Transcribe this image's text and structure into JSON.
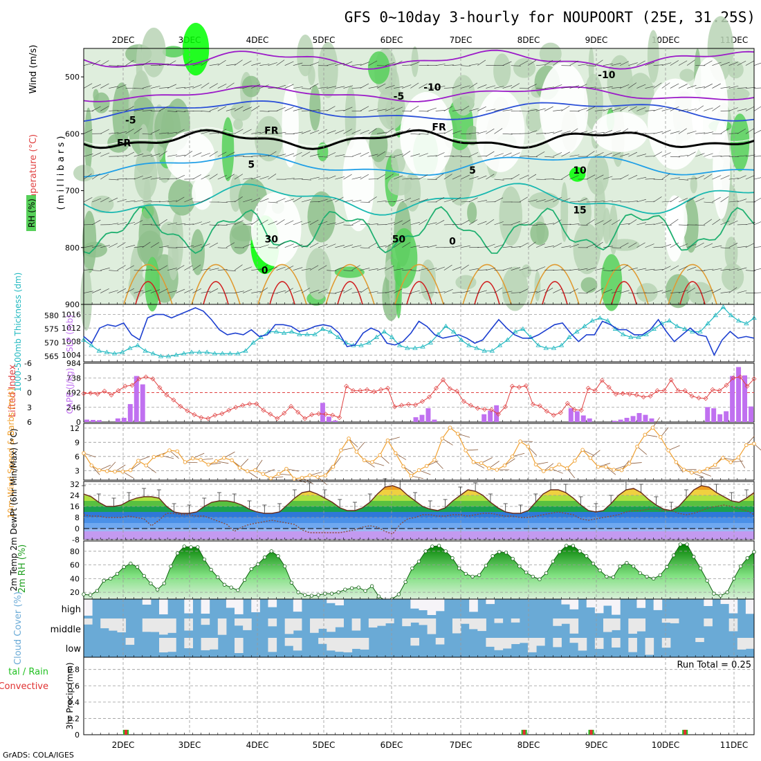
{
  "title": "GFS 0~10day 3-hourly for NOUPOORT (25E, 31.25S)",
  "credit": "GrADS: COLA/IGES",
  "dates": [
    "2DEC",
    "3DEC",
    "4DEC",
    "5DEC",
    "6DEC",
    "7DEC",
    "8DEC",
    "9DEC",
    "10DEC",
    "11DEC"
  ],
  "colors": {
    "rh_light": "#dfeedd",
    "rh_mid": "#b8d3b5",
    "rh_dark": "#8fbf8c",
    "rh_green": "#57d05a",
    "rh_bright": "#00ff00",
    "t_minus10": "#9b1ac8",
    "t_minus5": "#2a4fd8",
    "t_0": "#000000",
    "t_5": "#1f9fe6",
    "t_10": "#18b8b0",
    "t_15": "#20b070",
    "t_warm": "#e09a30",
    "t_hot": "#d02020",
    "slp": "#1c3fd0",
    "thickness": "#20b8c0",
    "lifted": "#e04040",
    "cape": "#c070f0",
    "wind": "#f0a030",
    "barb": "#8a5a3a",
    "dewpt": "#8a4a3a",
    "rh2m": "#20a020",
    "cloud": "#6aaad6",
    "cloud_gap": "#e8e8e8",
    "precip_total": "#20c020",
    "precip_conv": "#e03030"
  },
  "chart_data": [
    {
      "name": "upper_air",
      "type": "heatmap",
      "ylabels": [
        "Wind (m/s)",
        "Temperature (°C)",
        "RH (%)"
      ],
      "ylabel_right": "( m i l l i b a r s )",
      "yticks": [
        500,
        600,
        700,
        800,
        900
      ],
      "ylim": [
        450,
        900
      ],
      "contour_labels": [
        {
          "text": "-10",
          "t": 0.52,
          "p": 524
        },
        {
          "text": "-10",
          "t": 0.78,
          "p": 502
        },
        {
          "text": "-5",
          "t": 0.07,
          "p": 582
        },
        {
          "text": "-5",
          "t": 0.47,
          "p": 540
        },
        {
          "text": "FR",
          "t": 0.06,
          "p": 622
        },
        {
          "text": "FR",
          "t": 0.28,
          "p": 600
        },
        {
          "text": "FR",
          "t": 0.53,
          "p": 594
        },
        {
          "text": "5",
          "t": 0.25,
          "p": 660
        },
        {
          "text": "5",
          "t": 0.58,
          "p": 670
        },
        {
          "text": "10",
          "t": 0.74,
          "p": 670
        },
        {
          "text": "15",
          "t": 0.74,
          "p": 740
        },
        {
          "text": "30",
          "t": 0.28,
          "p": 791
        },
        {
          "text": "50",
          "t": 0.47,
          "p": 791
        },
        {
          "text": "0",
          "t": 0.55,
          "p": 795
        },
        {
          "text": "0",
          "t": 0.27,
          "p": 846
        }
      ]
    },
    {
      "name": "slp_thickness",
      "type": "line",
      "ylabel_left": "1000-500mb Thickness (dm)",
      "ylabel_right": "SLP (mb)",
      "left_ticks": [
        565,
        570,
        575,
        580
      ],
      "right_ticks": [
        1004,
        1008,
        1012,
        1016
      ],
      "series": [
        {
          "name": "SLP (mb)",
          "values": [
            1009.5,
            1007.5,
            1012,
            1013,
            1012.5,
            1013.5,
            1010,
            1008.5,
            1015,
            1016,
            1016,
            1015,
            1016,
            1017,
            1018,
            1017,
            1014.5,
            1011.5,
            1010,
            1010.5,
            1010,
            1011.5,
            1009.5,
            1010,
            1013,
            1013,
            1012.5,
            1011,
            1011.5,
            1012.5,
            1013,
            1012.5,
            1010.5,
            1006.5,
            1007,
            1010.5,
            1012,
            1011,
            1007.5,
            1007,
            1008,
            1010.5,
            1014,
            1012.5,
            1010,
            1009,
            1009.5,
            1010,
            1009,
            1007.5,
            1008.5,
            1011.5,
            1014.5,
            1012,
            1010,
            1009,
            1009,
            1010,
            1011.5,
            1013,
            1013.5,
            1010.5,
            1008,
            1010,
            1010,
            1014,
            1013,
            1011.5,
            1011.5,
            1010,
            1010,
            1011.5,
            1014.5,
            1011,
            1008,
            1010,
            1012,
            1010,
            1009.5,
            1004,
            1008.5,
            1011,
            1009,
            1009.5,
            1009
          ]
        },
        {
          "name": "1000-500mb Thickness (dm)",
          "values": [
            571,
            569,
            567,
            566.5,
            566,
            566.5,
            568,
            569,
            567,
            566,
            565,
            565,
            565.5,
            566,
            566.5,
            566.5,
            566.5,
            566,
            566,
            566,
            566,
            567,
            570,
            572,
            574,
            574,
            573.5,
            574,
            573,
            573,
            573,
            575,
            574,
            572,
            570,
            569,
            569,
            570,
            572,
            574,
            572,
            569,
            568,
            568,
            568.5,
            570,
            573,
            576,
            574,
            571,
            569,
            568,
            567,
            567,
            569,
            571,
            574,
            575,
            572,
            569,
            568,
            568,
            569,
            572,
            574,
            576,
            578,
            579,
            578,
            575,
            573,
            572,
            572,
            573,
            575,
            577,
            578,
            576,
            575,
            574,
            574,
            577,
            580,
            583,
            580,
            578,
            577,
            579
          ]
        }
      ]
    },
    {
      "name": "stability",
      "type": "bar",
      "ylabel_left": "Lifted Index",
      "ylabel_right": "CAPE (J/kg)",
      "left_ticks": [
        6,
        3,
        0,
        -3,
        -6
      ],
      "right_ticks": [
        0,
        246,
        492,
        738,
        984
      ],
      "series": [
        {
          "name": "Lifted Index",
          "values": [
            0.2,
            0.1,
            0.3,
            -0.3,
            0.5,
            -0.4,
            -1.3,
            -1.5,
            -2.8,
            -3.2,
            -2.8,
            -1,
            0.5,
            1.5,
            2.8,
            3.7,
            4.5,
            5.1,
            5.3,
            4.6,
            4.3,
            3.6,
            3,
            2.6,
            2.3,
            2.3,
            3.6,
            4.4,
            5.3,
            4.2,
            2.8,
            4,
            5.3,
            4.5,
            4.3,
            4.4,
            4.6,
            5.1,
            -1.3,
            -0.4,
            -0.4,
            -0.6,
            -0.2,
            -0.6,
            -0.9,
            2.9,
            2.6,
            2.4,
            2.5,
            1.8,
            0.9,
            -0.9,
            -2.6,
            -0.8,
            -0.3,
            1.8,
            2.6,
            3.2,
            3.4,
            3.5,
            4.4,
            2.9,
            -1.3,
            -1.1,
            -1.4,
            2.4,
            2.7,
            3.8,
            4.6,
            4.1,
            2.2,
            3.5,
            3.6,
            -0.9,
            -0.4,
            -2.5,
            -1.1,
            0.3,
            0.2,
            0.3,
            0.5,
            0.9,
            0.7,
            -0.4,
            -0.4,
            -2.6,
            -0.4,
            -0.4,
            0.7,
            1.1,
            1.2,
            -0.6,
            -0.4,
            -1.5,
            -3,
            -3.2,
            -1.3,
            -2.8
          ]
        },
        {
          "name": "CAPE (J/kg)",
          "values": [
            40,
            35,
            30,
            0,
            0,
            60,
            70,
            300,
            770,
            630,
            0,
            0,
            0,
            0,
            0,
            0,
            0,
            0,
            0,
            0,
            0,
            0,
            0,
            0,
            0,
            0,
            0,
            0,
            0,
            0,
            0,
            0,
            0,
            0,
            0,
            0,
            0,
            0,
            320,
            90,
            25,
            0,
            0,
            0,
            0,
            0,
            0,
            0,
            0,
            0,
            0,
            0,
            0,
            80,
            120,
            230,
            40,
            0,
            0,
            0,
            0,
            0,
            0,
            0,
            130,
            190,
            280,
            0,
            0,
            0,
            0,
            0,
            0,
            0,
            0,
            0,
            0,
            0,
            230,
            180,
            110,
            60,
            0,
            0,
            0,
            20,
            40,
            70,
            100,
            150,
            120,
            60,
            0,
            0,
            0,
            0,
            0,
            0,
            0,
            0,
            250,
            230,
            130,
            180,
            770,
            920,
            780,
            260
          ]
        }
      ]
    },
    {
      "name": "wind10m",
      "type": "line",
      "ylabel": "10m Wind Speed & Barbs (m/s)",
      "yticks": [
        3,
        6,
        9,
        12
      ],
      "ylim": [
        1,
        13
      ],
      "series": [
        {
          "name": "10m Wind Speed",
          "values": [
            6.7,
            4.1,
            3.1,
            2.9,
            2.8,
            2.8,
            3.1,
            5.1,
            4.1,
            5.9,
            6.2,
            7.3,
            7.1,
            4.8,
            5.6,
            5.3,
            4.3,
            5,
            5.7,
            5.2,
            3.6,
            2.9,
            3.1,
            2.3,
            1.4,
            2.3,
            3.4,
            1.3,
            1.5,
            2,
            1.7,
            2,
            3.8,
            7.3,
            9.8,
            7,
            5.2,
            4.8,
            6.3,
            9.4,
            6.7,
            3.9,
            1.9,
            3.1,
            4,
            5.3,
            9.8,
            12.1,
            10.8,
            7.3,
            4.8,
            4.6,
            3.5,
            3.2,
            4.1,
            6,
            9.2,
            8.1,
            4.3,
            2.9,
            3.4,
            4.3,
            3.5,
            5.1,
            7.4,
            5.7,
            3.8,
            3.8,
            3.2,
            3.1,
            4.5,
            8.1,
            10.6,
            12.1,
            10.1,
            7.3,
            4.8,
            3.2,
            2.6,
            2.8,
            3.4,
            4.2,
            5.7,
            4.8,
            5.8,
            8.4,
            8.7
          ]
        }
      ]
    },
    {
      "name": "temp2m",
      "type": "area",
      "ylabel": "2m Temp 2m DewPt (6hr Min/Max) (°C)",
      "yticks": [
        -8,
        0,
        8,
        16,
        24,
        32
      ],
      "ylim": [
        -8,
        34
      ],
      "series": [
        {
          "name": "2m Temp",
          "values": [
            25,
            23,
            19,
            16,
            16,
            17,
            20,
            22,
            23,
            23,
            22,
            16,
            12,
            11,
            11,
            12,
            16,
            19,
            20,
            20,
            19,
            17,
            14,
            12,
            11,
            11,
            12,
            17,
            22,
            26,
            27,
            25,
            22,
            19,
            15,
            13,
            13,
            15,
            19,
            25,
            30,
            31,
            29,
            24,
            20,
            16,
            14,
            13,
            15,
            20,
            24,
            28,
            27,
            24,
            19,
            15,
            12,
            11,
            11,
            13,
            19,
            25,
            28,
            28,
            26,
            22,
            17,
            13,
            12,
            13,
            18,
            24,
            28,
            29,
            26,
            21,
            17,
            14,
            13,
            16,
            22,
            28,
            31,
            30,
            26,
            23,
            20,
            19,
            22,
            26
          ]
        },
        {
          "name": "2m DewPt",
          "values": [
            10,
            9,
            9,
            8,
            8,
            8,
            9,
            8,
            7,
            2,
            6,
            11,
            11,
            10,
            10,
            9,
            9,
            7,
            5,
            3,
            -2,
            1,
            3,
            4,
            5,
            6,
            5,
            4,
            3,
            -1,
            -3,
            -3,
            -3,
            -3,
            -3,
            -2,
            -1,
            1,
            2,
            1,
            -2,
            -4,
            3,
            7,
            8,
            10,
            10,
            9,
            9,
            10,
            10,
            9,
            10,
            11,
            11,
            10,
            9,
            9,
            8,
            8,
            9,
            10,
            11,
            12,
            11,
            10,
            7,
            6,
            7,
            8,
            9,
            10,
            12,
            13,
            13,
            14,
            14,
            13,
            13,
            11,
            10,
            11,
            13,
            15,
            16,
            17,
            16,
            14,
            13,
            10
          ]
        }
      ]
    },
    {
      "name": "rh2m",
      "type": "area",
      "ylabel": "2m RH (%)",
      "yticks": [
        20,
        40,
        60,
        80
      ],
      "ylim": [
        10,
        95
      ],
      "series": [
        {
          "name": "2m RH",
          "values": [
            17,
            16,
            22,
            37,
            40,
            47,
            57,
            62,
            57,
            44,
            33,
            24,
            33,
            58,
            77,
            87,
            86,
            86,
            68,
            53,
            42,
            31,
            27,
            23,
            38,
            54,
            61,
            71,
            80,
            73,
            58,
            34,
            20,
            16,
            15,
            16,
            18,
            18,
            20,
            24,
            26,
            27,
            22,
            29,
            14,
            8,
            10,
            17,
            35,
            55,
            65,
            80,
            87,
            88,
            80,
            70,
            55,
            47,
            43,
            45,
            59,
            73,
            79,
            78,
            69,
            58,
            49,
            43,
            39,
            48,
            65,
            79,
            88,
            88,
            80,
            73,
            62,
            52,
            43,
            42,
            58,
            63,
            58,
            48,
            43,
            40,
            45,
            57,
            74,
            90,
            90,
            72,
            55,
            37,
            18,
            15,
            20,
            40,
            58,
            70,
            79
          ]
        }
      ]
    },
    {
      "name": "cloud",
      "type": "heatmap",
      "ylabel": "Cloud Cover (%)",
      "levels": [
        "high",
        "middle",
        "low"
      ]
    },
    {
      "name": "precip",
      "type": "bar",
      "ylabel_left": "Total / Rain Convective",
      "ylabel_right": "3hr Precip (mm)",
      "yticks": [
        0,
        0.2,
        0.4,
        0.6,
        0.8
      ],
      "ylim": [
        0,
        0.95
      ],
      "annotation": "Run Total = 0.25",
      "events": [
        {
          "t": 0.063,
          "v": 0.06
        },
        {
          "t": 0.657,
          "v": 0.06
        },
        {
          "t": 0.757,
          "v": 0.06
        },
        {
          "t": 0.897,
          "v": 0.06
        }
      ]
    }
  ]
}
